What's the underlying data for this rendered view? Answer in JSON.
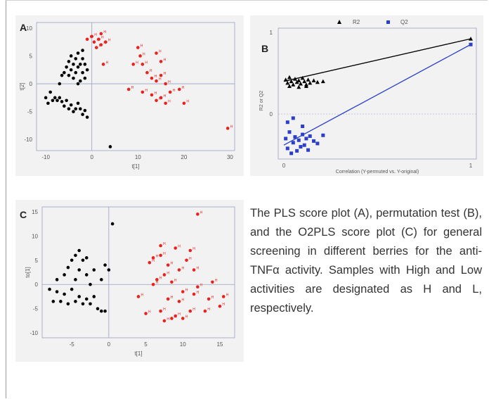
{
  "caption": "The PLS score plot (A), permutation test (B), and the O2PLS score plot (C) for general screening in different berries for the anti-TNFα activity. Samples with High and Low activities are designated as H and L, respectively.",
  "colors": {
    "low": "#000000",
    "high": "#e8231f",
    "r2": "#000000",
    "q2": "#2b3fc8",
    "axis": "#555555",
    "grid": "#9aa0c0"
  },
  "chart_data": [
    {
      "type": "scatter",
      "panel_letter": "A",
      "xlabel": "t[1]",
      "ylabel": "t[2]",
      "xlim": [
        -12,
        31
      ],
      "ylim": [
        -12,
        11
      ],
      "xticks": [
        -10,
        0,
        10,
        20,
        30
      ],
      "yticks": [
        10,
        5,
        0,
        -5,
        -10
      ],
      "series": [
        {
          "name": "L",
          "points": [
            [
              -10,
              -2.5
            ],
            [
              -9.5,
              -3.5
            ],
            [
              -9,
              -1.5
            ],
            [
              -8.5,
              -3
            ],
            [
              -8,
              -2.5
            ],
            [
              -7.5,
              -3
            ],
            [
              -7,
              -2.5
            ],
            [
              -6.5,
              -3.2
            ],
            [
              -6,
              -4
            ],
            [
              -5.5,
              -3
            ],
            [
              -5,
              -4.5
            ],
            [
              -4.5,
              -3.8
            ],
            [
              -4,
              -5
            ],
            [
              -3.5,
              -4.5
            ],
            [
              -3,
              -3.5
            ],
            [
              -2.5,
              -4.5
            ],
            [
              -2,
              -5.5
            ],
            [
              -1.5,
              -4.8
            ],
            [
              -1,
              -6
            ],
            [
              -7,
              0
            ],
            [
              -6.5,
              1.5
            ],
            [
              -6,
              2
            ],
            [
              -5.5,
              3
            ],
            [
              -5,
              1.5
            ],
            [
              -5,
              4
            ],
            [
              -4.5,
              2.5
            ],
            [
              -4.5,
              5
            ],
            [
              -4,
              3.5
            ],
            [
              -4,
              1
            ],
            [
              -3.5,
              2
            ],
            [
              -3.5,
              4.5
            ],
            [
              -3,
              3
            ],
            [
              -3,
              5.5
            ],
            [
              -2.5,
              0.5
            ],
            [
              -2.5,
              3.5
            ],
            [
              -2,
              2
            ],
            [
              -2,
              4.5
            ],
            [
              -1.5,
              1
            ],
            [
              -1.5,
              3.5
            ],
            [
              -1,
              2.5
            ],
            [
              -2,
              6
            ],
            [
              -3,
              0
            ],
            [
              4,
              -11.3
            ]
          ]
        },
        {
          "name": "H",
          "points": [
            [
              0,
              8.5
            ],
            [
              0.5,
              7.5
            ],
            [
              1,
              6.5
            ],
            [
              1.5,
              8
            ],
            [
              2,
              7
            ],
            [
              2,
              9
            ],
            [
              2.5,
              3.5
            ],
            [
              3,
              7.5
            ],
            [
              -1,
              8
            ],
            [
              10,
              6.5
            ],
            [
              10.5,
              5
            ],
            [
              9,
              3.5
            ],
            [
              11,
              3.5
            ],
            [
              14,
              5.5
            ],
            [
              15,
              4
            ],
            [
              12,
              2
            ],
            [
              13,
              1
            ],
            [
              14,
              0.5
            ],
            [
              15,
              1.5
            ],
            [
              16,
              0
            ],
            [
              8,
              -1
            ],
            [
              11,
              -1.5
            ],
            [
              13,
              -2
            ],
            [
              14,
              -3
            ],
            [
              15,
              -2.5
            ],
            [
              16,
              -3.5
            ],
            [
              17,
              -1.5
            ],
            [
              19,
              -1
            ],
            [
              20,
              -3.5
            ],
            [
              29.5,
              -8
            ]
          ]
        }
      ]
    },
    {
      "type": "scatter",
      "panel_letter": "B",
      "xlabel": "Correlation (Y-permuted vs. Y-original)",
      "ylabel": "R2 or Q2",
      "xlim": [
        -0.03,
        1.03
      ],
      "ylim": [
        -0.55,
        1.05
      ],
      "xticks": [
        0,
        1
      ],
      "yticks": [
        1,
        0
      ],
      "legend": [
        "R2",
        "Q2"
      ],
      "legend_position": "top",
      "series": [
        {
          "name": "R2",
          "marker": "triangle",
          "points": [
            [
              0.01,
              0.42
            ],
            [
              0.02,
              0.38
            ],
            [
              0.03,
              0.45
            ],
            [
              0.04,
              0.4
            ],
            [
              0.05,
              0.36
            ],
            [
              0.06,
              0.43
            ],
            [
              0.07,
              0.39
            ],
            [
              0.08,
              0.41
            ],
            [
              0.09,
              0.37
            ],
            [
              0.1,
              0.44
            ],
            [
              0.11,
              0.4
            ],
            [
              0.12,
              0.36
            ],
            [
              0.13,
              0.42
            ],
            [
              0.14,
              0.38
            ],
            [
              0.16,
              0.41
            ],
            [
              0.18,
              0.39
            ],
            [
              0.21,
              0.4
            ],
            [
              0.03,
              0.34
            ],
            [
              0.08,
              0.33
            ],
            [
              0.12,
              0.34
            ],
            [
              1.0,
              0.92
            ]
          ],
          "fit_line": [
            [
              0.0,
              0.4
            ],
            [
              1.0,
              0.92
            ]
          ]
        },
        {
          "name": "Q2",
          "marker": "square",
          "points": [
            [
              0.01,
              -0.3
            ],
            [
              0.02,
              -0.42
            ],
            [
              0.03,
              -0.22
            ],
            [
              0.04,
              -0.48
            ],
            [
              0.05,
              -0.35
            ],
            [
              0.06,
              -0.28
            ],
            [
              0.07,
              -0.45
            ],
            [
              0.08,
              -0.32
            ],
            [
              0.09,
              -0.4
            ],
            [
              0.1,
              -0.25
            ],
            [
              0.11,
              -0.38
            ],
            [
              0.12,
              -0.3
            ],
            [
              0.13,
              -0.44
            ],
            [
              0.14,
              -0.27
            ],
            [
              0.16,
              -0.33
            ],
            [
              0.18,
              -0.36
            ],
            [
              0.21,
              -0.26
            ],
            [
              0.02,
              -0.1
            ],
            [
              0.05,
              -0.05
            ],
            [
              0.1,
              -0.15
            ],
            [
              1.0,
              0.85
            ]
          ],
          "fit_line": [
            [
              0.0,
              -0.38
            ],
            [
              1.0,
              0.85
            ]
          ]
        }
      ]
    },
    {
      "type": "scatter",
      "panel_letter": "C",
      "xlabel": "t[1]",
      "ylabel": "to[1]",
      "xlim": [
        -9,
        17
      ],
      "ylim": [
        -11,
        16
      ],
      "xticks": [
        -5,
        0,
        5,
        10,
        15
      ],
      "yticks": [
        15,
        10,
        5,
        0,
        -5,
        -10
      ],
      "series": [
        {
          "name": "L",
          "points": [
            [
              -8,
              -1
            ],
            [
              -7.5,
              -3.5
            ],
            [
              -7,
              -1.5
            ],
            [
              -7,
              1
            ],
            [
              -6.5,
              -3.5
            ],
            [
              -6,
              -2
            ],
            [
              -6,
              2
            ],
            [
              -5.5,
              -4
            ],
            [
              -5.5,
              3.5
            ],
            [
              -5,
              -1
            ],
            [
              -5,
              5
            ],
            [
              -4.5,
              -3.5
            ],
            [
              -4.5,
              1
            ],
            [
              -4.5,
              6
            ],
            [
              -4,
              -2.5
            ],
            [
              -4,
              3
            ],
            [
              -4,
              7
            ],
            [
              -3.5,
              -4
            ],
            [
              -3.5,
              5
            ],
            [
              -3,
              -3
            ],
            [
              -3,
              2
            ],
            [
              -3,
              5.5
            ],
            [
              -2.5,
              -4
            ],
            [
              -2.5,
              0
            ],
            [
              -2,
              -2.5
            ],
            [
              -2,
              3
            ],
            [
              -1.5,
              -5
            ],
            [
              -1,
              -5.5
            ],
            [
              -0.5,
              -5.5
            ],
            [
              -1,
              1
            ],
            [
              -0.5,
              4
            ],
            [
              0,
              3
            ],
            [
              0.5,
              12.5
            ]
          ]
        },
        {
          "name": "H",
          "points": [
            [
              4,
              -2.5
            ],
            [
              5,
              -6
            ],
            [
              5.5,
              4.5
            ],
            [
              6,
              0
            ],
            [
              6,
              5.5
            ],
            [
              6.5,
              1
            ],
            [
              7,
              -5.5
            ],
            [
              7,
              6
            ],
            [
              7,
              8
            ],
            [
              7.5,
              -7.5
            ],
            [
              7.5,
              2
            ],
            [
              8,
              -3
            ],
            [
              8,
              4
            ],
            [
              8.5,
              -7
            ],
            [
              8.5,
              0.5
            ],
            [
              9,
              -6.5
            ],
            [
              9,
              7.5
            ],
            [
              9.5,
              -3.5
            ],
            [
              9.5,
              3
            ],
            [
              10,
              -7
            ],
            [
              10,
              -1.5
            ],
            [
              10.5,
              5
            ],
            [
              11,
              -5.5
            ],
            [
              11,
              7
            ],
            [
              11.5,
              -2
            ],
            [
              11.5,
              3
            ],
            [
              12,
              -0.5
            ],
            [
              12,
              14.5
            ],
            [
              13,
              -5.5
            ],
            [
              13.5,
              -3
            ],
            [
              14,
              0.5
            ],
            [
              15,
              -4.5
            ],
            [
              15.5,
              -2.5
            ]
          ]
        }
      ]
    }
  ]
}
